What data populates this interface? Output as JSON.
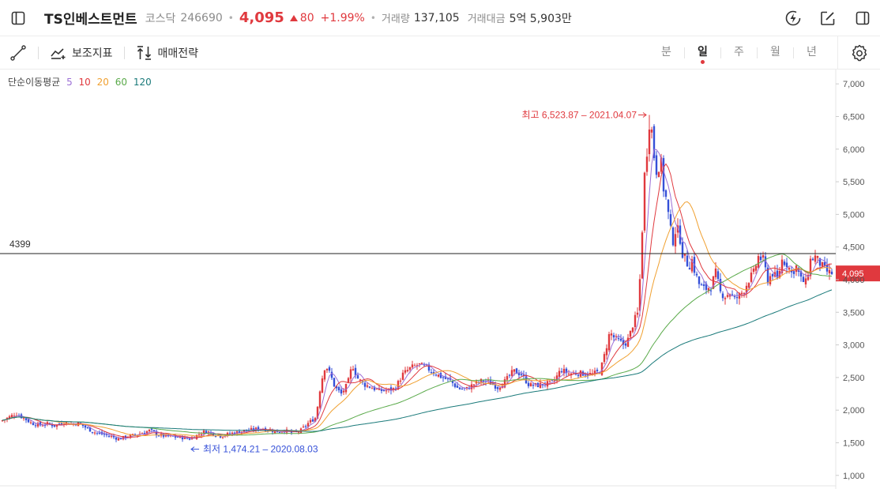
{
  "header": {
    "stock_name": "TS인베스트먼트",
    "market": "코스닥",
    "code": "246690",
    "price": "4,095",
    "change": "80",
    "change_pct": "+1.99%",
    "volume_label": "거래량",
    "volume": "137,105",
    "amount_label": "거래대금",
    "amount": "5억 5,903만",
    "icons": [
      "sidebar-toggle-icon",
      "flash-icon",
      "edit-icon",
      "panel-icon"
    ]
  },
  "toolbar": {
    "draw_icon": "line-draw-icon",
    "indicator_label": "보조지표",
    "trade_strategy_label": "매매전략",
    "periods": [
      "분",
      "일",
      "주",
      "월",
      "년"
    ],
    "active_period": "일",
    "settings_icon": "gear-icon"
  },
  "legend": {
    "title": "단순이동평균",
    "items": [
      {
        "label": "5",
        "color": "#9c6fd6"
      },
      {
        "label": "10",
        "color": "#e0393e"
      },
      {
        "label": "20",
        "color": "#f0a030"
      },
      {
        "label": "60",
        "color": "#5aaa4a"
      },
      {
        "label": "120",
        "color": "#1a7a7a"
      }
    ]
  },
  "colors": {
    "up": "#e0393e",
    "down": "#3550d8",
    "hline": "#222222",
    "high_label": "#e0393e",
    "low_label": "#3550d8"
  },
  "chart_data": {
    "type": "candlestick",
    "y_ticks": [
      "7,000",
      "6,500",
      "6,000",
      "5,500",
      "5,000",
      "4,500",
      "4,000",
      "3,500",
      "3,000",
      "2,500",
      "2,000",
      "1,500",
      "1,000"
    ],
    "ylim": [
      840,
      7220
    ],
    "hline": {
      "value": 4399,
      "label": "4399"
    },
    "current_price": {
      "value": 4095,
      "label": "4,095"
    },
    "high": {
      "value": 6523.87,
      "label": "최고 6,523.87 – 2021.04.07"
    },
    "low": {
      "value": 1474.21,
      "label": "최저 1,474.21 – 2020.08.03"
    },
    "close_path": [
      [
        0,
        1830
      ],
      [
        10,
        1880
      ],
      [
        20,
        1950
      ],
      [
        30,
        1880
      ],
      [
        40,
        1800
      ],
      [
        50,
        1770
      ],
      [
        60,
        1790
      ],
      [
        70,
        1760
      ],
      [
        80,
        1820
      ],
      [
        90,
        1790
      ],
      [
        100,
        1800
      ],
      [
        110,
        1720
      ],
      [
        120,
        1660
      ],
      [
        130,
        1630
      ],
      [
        140,
        1600
      ],
      [
        150,
        1560
      ],
      [
        160,
        1590
      ],
      [
        170,
        1620
      ],
      [
        180,
        1650
      ],
      [
        190,
        1690
      ],
      [
        200,
        1620
      ],
      [
        210,
        1600
      ],
      [
        220,
        1590
      ],
      [
        230,
        1580
      ],
      [
        240,
        1560
      ],
      [
        250,
        1620
      ],
      [
        260,
        1680
      ],
      [
        270,
        1640
      ],
      [
        280,
        1600
      ],
      [
        290,
        1640
      ],
      [
        300,
        1660
      ],
      [
        310,
        1690
      ],
      [
        320,
        1700
      ],
      [
        330,
        1720
      ],
      [
        340,
        1700
      ],
      [
        350,
        1670
      ],
      [
        360,
        1690
      ],
      [
        370,
        1650
      ],
      [
        380,
        1680
      ],
      [
        390,
        1800
      ],
      [
        400,
        1890
      ],
      [
        406,
        2400
      ],
      [
        412,
        2700
      ],
      [
        418,
        2550
      ],
      [
        424,
        2350
      ],
      [
        432,
        2250
      ],
      [
        440,
        2400
      ],
      [
        446,
        2700
      ],
      [
        452,
        2500
      ],
      [
        460,
        2400
      ],
      [
        470,
        2350
      ],
      [
        480,
        2300
      ],
      [
        490,
        2300
      ],
      [
        500,
        2330
      ],
      [
        510,
        2550
      ],
      [
        520,
        2650
      ],
      [
        530,
        2700
      ],
      [
        540,
        2650
      ],
      [
        550,
        2570
      ],
      [
        560,
        2500
      ],
      [
        570,
        2450
      ],
      [
        580,
        2330
      ],
      [
        590,
        2320
      ],
      [
        600,
        2400
      ],
      [
        610,
        2450
      ],
      [
        620,
        2420
      ],
      [
        630,
        2350
      ],
      [
        640,
        2450
      ],
      [
        650,
        2600
      ],
      [
        660,
        2550
      ],
      [
        670,
        2380
      ],
      [
        680,
        2380
      ],
      [
        690,
        2400
      ],
      [
        700,
        2420
      ],
      [
        710,
        2620
      ],
      [
        720,
        2560
      ],
      [
        730,
        2570
      ],
      [
        740,
        2560
      ],
      [
        750,
        2550
      ],
      [
        760,
        2600
      ],
      [
        766,
        2880
      ],
      [
        772,
        3200
      ],
      [
        778,
        3100
      ],
      [
        784,
        3050
      ],
      [
        790,
        3000
      ],
      [
        796,
        3100
      ],
      [
        802,
        3350
      ],
      [
        808,
        3500
      ],
      [
        812,
        4500
      ],
      [
        816,
        5600
      ],
      [
        820,
        6100
      ],
      [
        824,
        6300
      ],
      [
        828,
        5900
      ],
      [
        832,
        5600
      ],
      [
        836,
        5900
      ],
      [
        840,
        5400
      ],
      [
        844,
        5200
      ],
      [
        848,
        4800
      ],
      [
        852,
        4600
      ],
      [
        856,
        4800
      ],
      [
        860,
        4700
      ],
      [
        864,
        4400
      ],
      [
        868,
        4300
      ],
      [
        872,
        4200
      ],
      [
        876,
        4300
      ],
      [
        880,
        4100
      ],
      [
        886,
        3900
      ],
      [
        892,
        3850
      ],
      [
        900,
        3900
      ],
      [
        906,
        4100
      ],
      [
        912,
        3800
      ],
      [
        918,
        3750
      ],
      [
        924,
        3800
      ],
      [
        930,
        3700
      ],
      [
        936,
        3750
      ],
      [
        942,
        3850
      ],
      [
        948,
        4000
      ],
      [
        954,
        4100
      ],
      [
        960,
        4350
      ],
      [
        966,
        4300
      ],
      [
        972,
        4000
      ],
      [
        978,
        4100
      ],
      [
        984,
        4000
      ],
      [
        990,
        4300
      ],
      [
        996,
        4250
      ],
      [
        1002,
        4100
      ],
      [
        1008,
        4200
      ],
      [
        1014,
        4000
      ],
      [
        1020,
        3950
      ],
      [
        1026,
        4300
      ],
      [
        1032,
        4350
      ],
      [
        1038,
        4250
      ],
      [
        1044,
        4150
      ],
      [
        1050,
        4100
      ],
      [
        1055,
        4095
      ]
    ]
  }
}
